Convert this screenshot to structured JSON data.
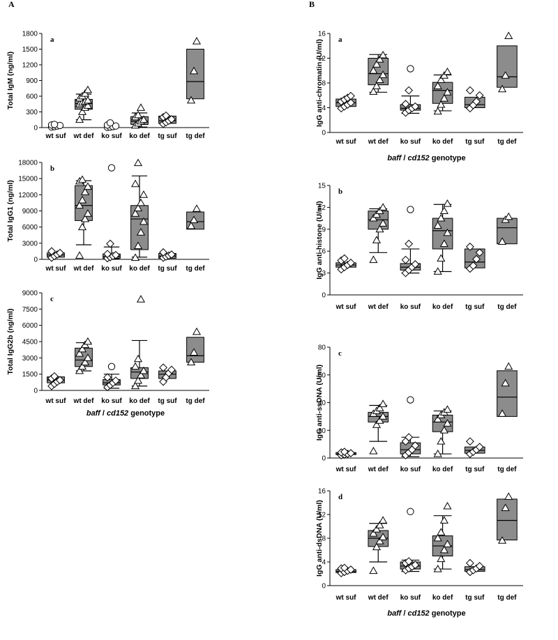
{
  "figure_labels": {
    "left": "A",
    "right": "B"
  },
  "xlabel_parts": {
    "gene1": "baff",
    "sep": " / ",
    "gene2": "cd152",
    "word": " genotype"
  },
  "colors": {
    "box": "#8c8c8c",
    "line": "#000000",
    "marker_fill": "#ffffff"
  },
  "chart_data": [
    {
      "type": "box",
      "panel": "Aa",
      "sublabel": "a",
      "ylabel": "Total IgM (ng/ml)",
      "yticks": [
        0,
        300,
        600,
        900,
        1200,
        1500,
        1800
      ],
      "ylim": [
        0,
        1800
      ],
      "categories": [
        "wt suf",
        "wt def",
        "ko suf",
        "ko def",
        "tg suf",
        "tg def"
      ],
      "show_xlabel": false,
      "groups": [
        {
          "name": "wt suf",
          "box": null,
          "whisker": null,
          "marker": "circle",
          "points": [
            10,
            20,
            30,
            40,
            50,
            60
          ],
          "outliers": []
        },
        {
          "name": "wt def",
          "box": [
            350,
            460,
            540
          ],
          "whisker": [
            150,
            640
          ],
          "marker": "triangle",
          "points": [
            150,
            300,
            380,
            420,
            450,
            480,
            500,
            520,
            560,
            600,
            650,
            720
          ],
          "outliers": []
        },
        {
          "name": "ko suf",
          "box": null,
          "whisker": null,
          "marker": "circle",
          "points": [
            5,
            10,
            20,
            30,
            50,
            90
          ],
          "outliers": []
        },
        {
          "name": "ko def",
          "box": [
            60,
            120,
            210
          ],
          "whisker": [
            10,
            280
          ],
          "marker": "triangle",
          "points": [
            40,
            80,
            120,
            150,
            200,
            240,
            380
          ],
          "outliers": []
        },
        {
          "name": "tg suf",
          "box": [
            80,
            130,
            220
          ],
          "whisker": null,
          "marker": "diamond",
          "points": [
            70,
            100,
            130,
            160,
            200,
            230
          ],
          "outliers": []
        },
        {
          "name": "tg def",
          "box": [
            550,
            880,
            1500
          ],
          "whisker": null,
          "marker": "triangle",
          "points": [
            520,
            1080,
            1650
          ],
          "outliers": []
        }
      ]
    },
    {
      "type": "box",
      "panel": "Ab",
      "sublabel": "b",
      "ylabel": "Total IgG1 (ng/ml)",
      "yticks": [
        0,
        3000,
        6000,
        9000,
        12000,
        15000,
        18000
      ],
      "ylim": [
        0,
        18000
      ],
      "categories": [
        "wt suf",
        "wt def",
        "ko suf",
        "ko def",
        "tg suf",
        "tg def"
      ],
      "show_xlabel": false,
      "groups": [
        {
          "name": "wt suf",
          "box": [
            400,
            800,
            1200
          ],
          "whisker": null,
          "marker": "diamond",
          "points": [
            300,
            600,
            900,
            1200,
            1500
          ],
          "outliers": []
        },
        {
          "name": "wt def",
          "box": [
            7200,
            10000,
            13700
          ],
          "whisker": [
            2700,
            14600
          ],
          "marker": "triangle",
          "points": [
            700,
            6000,
            7500,
            8500,
            10000,
            11000,
            12500,
            13500,
            14500,
            14800
          ],
          "outliers": []
        },
        {
          "name": "ko suf",
          "box": [
            200,
            500,
            1000
          ],
          "whisker": [
            50,
            2300
          ],
          "marker": "diamond",
          "points": [
            200,
            400,
            600,
            800,
            1000,
            2900
          ],
          "outliers": [
            17000
          ]
        },
        {
          "name": "ko def",
          "box": [
            1800,
            7500,
            10000
          ],
          "whisker": [
            400,
            15500
          ],
          "marker": "triangle",
          "points": [
            300,
            2500,
            5000,
            7000,
            8500,
            9500,
            10500,
            12000,
            14000,
            17900
          ],
          "outliers": []
        },
        {
          "name": "tg suf",
          "box": [
            200,
            600,
            1100
          ],
          "whisker": null,
          "marker": "diamond",
          "points": [
            300,
            500,
            700,
            900,
            1300
          ],
          "outliers": []
        },
        {
          "name": "tg def",
          "box": [
            5600,
            7000,
            8800
          ],
          "whisker": null,
          "marker": "triangle",
          "points": [
            6200,
            7300,
            9400
          ],
          "outliers": []
        }
      ]
    },
    {
      "type": "box",
      "panel": "Ac",
      "sublabel": "c",
      "ylabel": "Total IgG2b (ng/ml)",
      "yticks": [
        0,
        1500,
        3000,
        4500,
        6000,
        7500,
        9000
      ],
      "ylim": [
        0,
        9000
      ],
      "categories": [
        "wt suf",
        "wt def",
        "ko suf",
        "ko def",
        "tg suf",
        "tg def"
      ],
      "show_xlabel": true,
      "groups": [
        {
          "name": "wt suf",
          "box": [
            700,
            950,
            1250
          ],
          "whisker": null,
          "marker": "diamond",
          "points": [
            400,
            600,
            800,
            950,
            1100,
            1300
          ],
          "outliers": []
        },
        {
          "name": "wt def",
          "box": [
            2200,
            2800,
            3900
          ],
          "whisker": [
            1800,
            4400
          ],
          "marker": "triangle",
          "points": [
            1800,
            2200,
            2600,
            3000,
            3400,
            3800,
            4200,
            4500
          ],
          "outliers": []
        },
        {
          "name": "ko suf",
          "box": [
            500,
            700,
            1000
          ],
          "whisker": [
            200,
            1500
          ],
          "marker": "diamond",
          "points": [
            300,
            500,
            700,
            900,
            1200
          ],
          "outliers": [
            2200
          ]
        },
        {
          "name": "ko def",
          "box": [
            1100,
            1700,
            2100
          ],
          "whisker": [
            400,
            4600
          ],
          "marker": "triangle",
          "points": [
            400,
            900,
            1400,
            1800,
            2200,
            2900,
            8400
          ],
          "outliers": []
        },
        {
          "name": "tg suf",
          "box": [
            1100,
            1500,
            1800
          ],
          "whisker": null,
          "marker": "diamond",
          "points": [
            800,
            1200,
            1600,
            1900,
            2100
          ],
          "outliers": []
        },
        {
          "name": "tg def",
          "box": [
            2600,
            3200,
            4900
          ],
          "whisker": null,
          "marker": "triangle",
          "points": [
            2600,
            3500,
            5400
          ],
          "outliers": []
        }
      ]
    },
    {
      "type": "box",
      "panel": "Ba",
      "sublabel": "a",
      "ylabel": "IgG anti-chromatin (U/ml)",
      "yticks": [
        0,
        4,
        8,
        12,
        16
      ],
      "ylim": [
        0,
        16
      ],
      "categories": [
        "wt suf",
        "wt def",
        "ko suf",
        "ko def",
        "tg suf",
        "tg def"
      ],
      "show_xlabel": true,
      "groups": [
        {
          "name": "wt suf",
          "box": [
            4.2,
            4.8,
            5.4
          ],
          "whisker": null,
          "marker": "diamond",
          "points": [
            3.9,
            4.2,
            4.5,
            4.8,
            5.0,
            5.3,
            5.6,
            5.9
          ],
          "outliers": []
        },
        {
          "name": "wt def",
          "box": [
            7.7,
            9.5,
            12.0
          ],
          "whisker": [
            6.5,
            12.6
          ],
          "marker": "triangle",
          "points": [
            6.6,
            7.5,
            8.5,
            9.3,
            10.0,
            11.0,
            11.8,
            12.5
          ],
          "outliers": []
        },
        {
          "name": "ko suf",
          "box": [
            3.6,
            3.9,
            4.5
          ],
          "whisker": [
            3.1,
            5.9
          ],
          "marker": "diamond",
          "points": [
            3.2,
            3.6,
            3.9,
            4.2,
            4.6,
            6.8
          ],
          "outliers": [
            10.3
          ]
        },
        {
          "name": "ko def",
          "box": [
            4.7,
            6.8,
            8.1
          ],
          "whisker": [
            3.5,
            9.3
          ],
          "marker": "triangle",
          "points": [
            3.4,
            4.5,
            5.5,
            6.5,
            7.5,
            8.5,
            9.2,
            9.8
          ],
          "outliers": []
        },
        {
          "name": "tg suf",
          "box": [
            4.0,
            4.5,
            5.7
          ],
          "whisker": null,
          "marker": "diamond",
          "points": [
            3.9,
            4.4,
            5.0,
            6.0,
            6.8
          ],
          "outliers": []
        },
        {
          "name": "tg def",
          "box": [
            7.3,
            9.0,
            14.0
          ],
          "whisker": null,
          "marker": "triangle",
          "points": [
            7.0,
            9.2,
            15.6
          ],
          "outliers": []
        }
      ]
    },
    {
      "type": "box",
      "panel": "Bb",
      "sublabel": "b",
      "ylabel": "IgG anti-histone (U/ml)",
      "yticks": [
        0,
        3,
        6,
        9,
        12,
        15
      ],
      "ylim": [
        0,
        15
      ],
      "categories": [
        "wt suf",
        "wt def",
        "ko suf",
        "ko def",
        "tg suf",
        "tg def"
      ],
      "show_xlabel": false,
      "groups": [
        {
          "name": "wt suf",
          "box": [
            3.8,
            4.1,
            4.4
          ],
          "whisker": null,
          "marker": "diamond",
          "points": [
            3.5,
            3.8,
            4.1,
            4.4,
            4.7,
            5.0
          ],
          "outliers": []
        },
        {
          "name": "wt def",
          "box": [
            9.0,
            10.3,
            11.5
          ],
          "whisker": [
            5.8,
            11.8
          ],
          "marker": "triangle",
          "points": [
            4.8,
            7.5,
            9.0,
            9.8,
            10.5,
            11.0,
            11.5,
            12.0
          ],
          "outliers": []
        },
        {
          "name": "ko suf",
          "box": [
            3.4,
            3.8,
            4.3
          ],
          "whisker": [
            3.0,
            6.3
          ],
          "marker": "diamond",
          "points": [
            3.0,
            3.4,
            3.8,
            4.2,
            4.8,
            7.0
          ],
          "outliers": [
            11.7
          ]
        },
        {
          "name": "ko def",
          "box": [
            6.3,
            8.8,
            10.5
          ],
          "whisker": [
            3.2,
            12.4
          ],
          "marker": "triangle",
          "points": [
            3.2,
            5.0,
            7.0,
            8.5,
            9.5,
            10.5,
            11.5,
            12.5
          ],
          "outliers": []
        },
        {
          "name": "tg suf",
          "box": [
            3.7,
            4.5,
            6.3
          ],
          "whisker": null,
          "marker": "diamond",
          "points": [
            3.6,
            4.0,
            4.9,
            5.8,
            6.6
          ],
          "outliers": []
        },
        {
          "name": "tg def",
          "box": [
            7.0,
            9.2,
            10.5
          ],
          "whisker": null,
          "marker": "triangle",
          "points": [
            7.3,
            10.3,
            10.7
          ],
          "outliers": []
        }
      ]
    },
    {
      "type": "box",
      "panel": "Bc",
      "sublabel": "c",
      "ylabel": "IgG anti-ssDNA (U/ml)",
      "yticks": [
        0,
        20,
        40,
        60,
        80
      ],
      "ylim": [
        0,
        80
      ],
      "categories": [
        "wt suf",
        "wt def",
        "ko suf",
        "ko def",
        "tg suf",
        "tg def"
      ],
      "show_xlabel": false,
      "groups": [
        {
          "name": "wt suf",
          "box": [
            2.5,
            3.0,
            4.0
          ],
          "whisker": null,
          "marker": "diamond",
          "points": [
            2.0,
            2.5,
            3.0,
            3.5,
            4.0,
            4.5
          ],
          "outliers": []
        },
        {
          "name": "wt def",
          "box": [
            26,
            30,
            33
          ],
          "whisker": [
            12,
            38
          ],
          "marker": "triangle",
          "points": [
            5,
            24,
            27,
            30,
            32,
            34,
            36,
            39
          ],
          "outliers": []
        },
        {
          "name": "ko suf",
          "box": [
            3,
            6,
            11
          ],
          "whisker": [
            1,
            15
          ],
          "marker": "diamond",
          "points": [
            2,
            4,
            6,
            9,
            12,
            15
          ],
          "outliers": [
            42
          ]
        },
        {
          "name": "ko def",
          "box": [
            19,
            26,
            31
          ],
          "whisker": [
            3,
            34
          ],
          "marker": "triangle",
          "points": [
            3,
            12,
            20,
            25,
            28,
            31,
            33,
            35
          ],
          "outliers": []
        },
        {
          "name": "tg suf",
          "box": [
            3.5,
            5.5,
            8.0
          ],
          "whisker": null,
          "marker": "diamond",
          "points": [
            3,
            4.5,
            6,
            8,
            12
          ],
          "outliers": []
        },
        {
          "name": "tg def",
          "box": [
            30,
            44,
            63
          ],
          "whisker": null,
          "marker": "triangle",
          "points": [
            32,
            54,
            66
          ],
          "outliers": []
        }
      ]
    },
    {
      "type": "box",
      "panel": "Bd",
      "sublabel": "d",
      "ylabel": "IgG anti-dsDNA (U/ml)",
      "yticks": [
        0,
        4,
        8,
        12,
        16
      ],
      "ylim": [
        0,
        16
      ],
      "categories": [
        "wt suf",
        "wt def",
        "ko suf",
        "ko def",
        "tg suf",
        "tg def"
      ],
      "show_xlabel": true,
      "groups": [
        {
          "name": "wt suf",
          "box": [
            2.2,
            2.4,
            2.7
          ],
          "whisker": null,
          "marker": "diamond",
          "points": [
            2.1,
            2.3,
            2.5,
            2.7,
            2.9,
            3.0
          ],
          "outliers": []
        },
        {
          "name": "wt def",
          "box": [
            6.6,
            8.0,
            9.3
          ],
          "whisker": [
            4.0,
            10.5
          ],
          "marker": "triangle",
          "points": [
            2.5,
            6.5,
            7.5,
            8.2,
            8.8,
            9.5,
            10.2,
            11.0
          ],
          "outliers": []
        },
        {
          "name": "ko suf",
          "box": [
            2.8,
            3.3,
            4.0
          ],
          "whisker": [
            2.4,
            4.3
          ],
          "marker": "diamond",
          "points": [
            2.6,
            2.9,
            3.2,
            3.5,
            3.8,
            4.1
          ],
          "outliers": [
            12.5
          ]
        },
        {
          "name": "ko def",
          "box": [
            5.0,
            6.7,
            8.4
          ],
          "whisker": [
            2.8,
            11.8
          ],
          "marker": "triangle",
          "points": [
            2.8,
            4.5,
            6.0,
            7.0,
            8.0,
            9.0,
            11.0,
            13.4
          ],
          "outliers": []
        },
        {
          "name": "tg suf",
          "box": [
            2.4,
            2.7,
            3.2
          ],
          "whisker": null,
          "marker": "diamond",
          "points": [
            2.3,
            2.6,
            2.9,
            3.3,
            3.8
          ],
          "outliers": []
        },
        {
          "name": "tg def",
          "box": [
            7.7,
            11.0,
            14.6
          ],
          "whisker": null,
          "marker": "triangle",
          "points": [
            7.6,
            13.1,
            15.0
          ],
          "outliers": []
        }
      ]
    }
  ]
}
